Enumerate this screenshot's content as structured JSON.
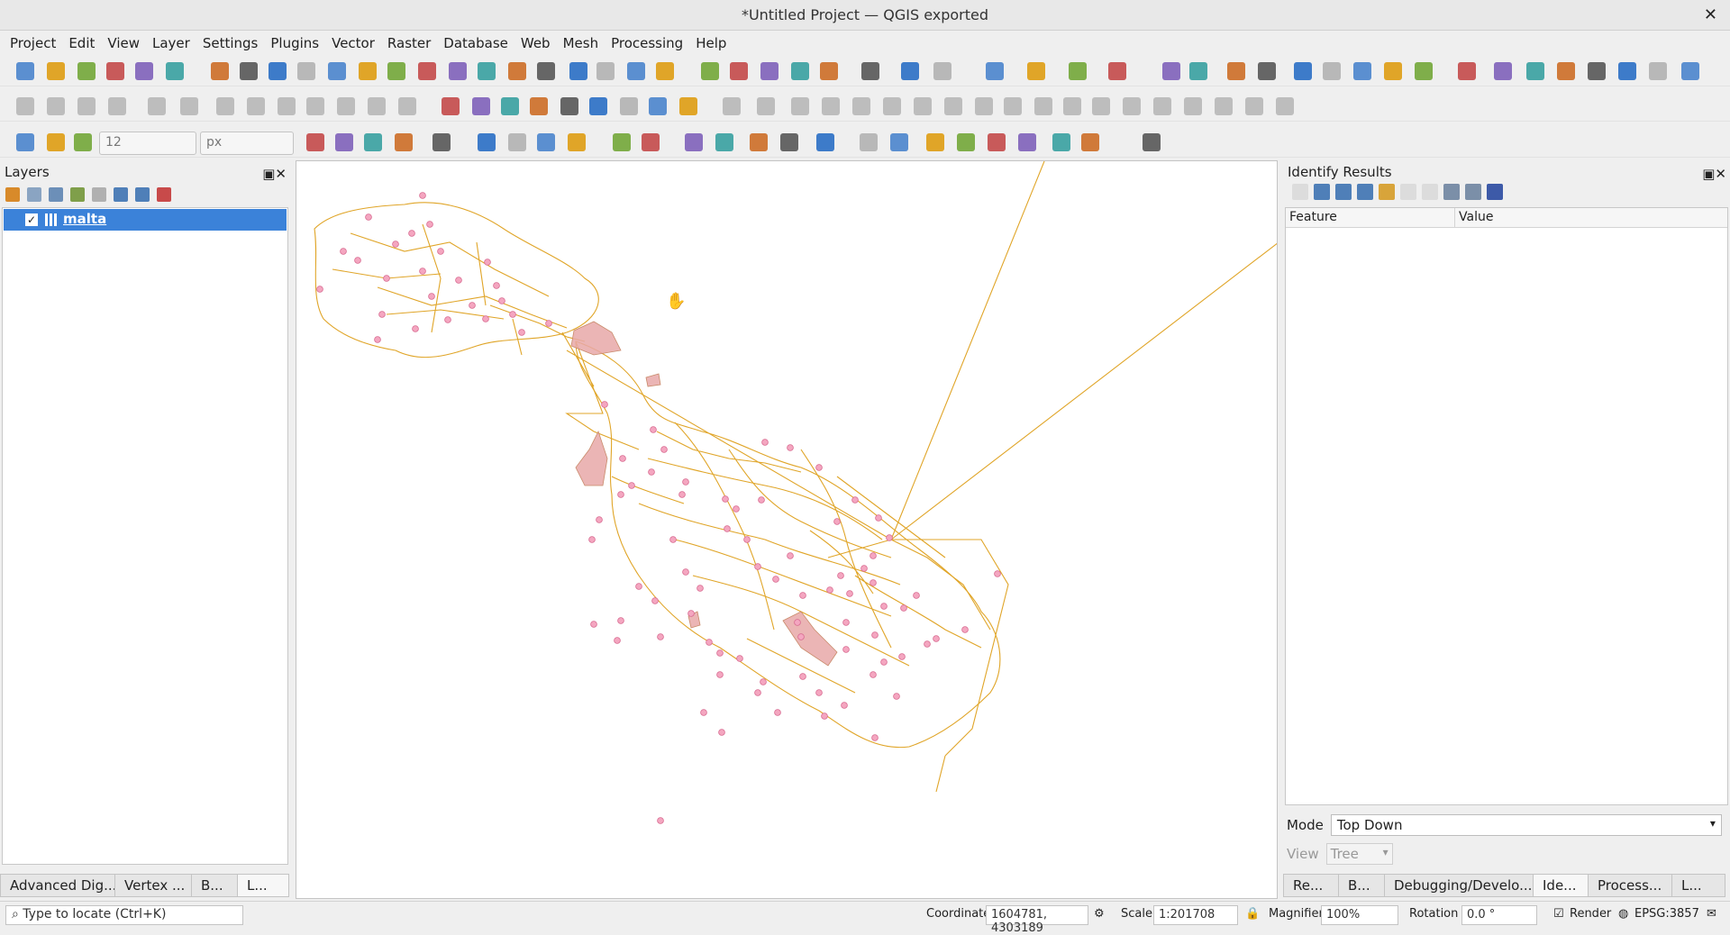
{
  "window": {
    "title": "*Untitled Project — QGIS exported",
    "close_glyph": "✕"
  },
  "menu": [
    "Project",
    "Edit",
    "View",
    "Layer",
    "Settings",
    "Plugins",
    "Vector",
    "Raster",
    "Database",
    "Web",
    "Mesh",
    "Processing",
    "Help"
  ],
  "toolbar": {
    "snap_tolerance": "12",
    "snap_unit": "px"
  },
  "layers_panel": {
    "title": "Layers",
    "layer_name": "malta",
    "layer_checked": "✓"
  },
  "left_tabs": [
    "Advanced Dig...",
    "Vertex ...",
    "B...",
    "L..."
  ],
  "identify_panel": {
    "title": "Identify Results",
    "col_feature": "Feature",
    "col_value": "Value",
    "mode_label": "Mode",
    "mode_value": "Top Down",
    "view_label": "View",
    "view_value": "Tree"
  },
  "right_tabs": [
    "Re...",
    "B...",
    "Debugging/Develo...",
    "Ide...",
    "Process...",
    "L..."
  ],
  "status": {
    "locator_placeholder": "Type to locate (Ctrl+K)",
    "coordinate_label": "Coordinate",
    "coordinate_value": "1604781, 4303189",
    "scale_label": "Scale",
    "scale_value": "1:201708",
    "magnifier_label": "Magnifier",
    "magnifier_value": "100%",
    "rotation_label": "Rotation",
    "rotation_value": "0.0 °",
    "render_label": "Render",
    "crs": "EPSG:3857"
  },
  "colors": {
    "road": "#e0a528",
    "area": "#e8a8a8",
    "point": "#f4a6c0",
    "selection": "#3b82d9"
  }
}
